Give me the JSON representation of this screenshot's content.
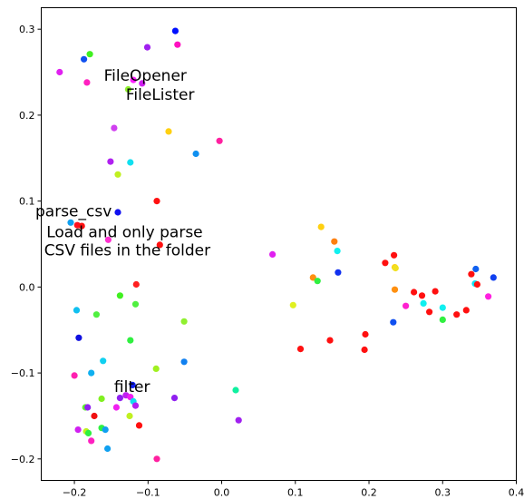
{
  "chart_data": {
    "type": "scatter",
    "title": "",
    "xlabel": "",
    "ylabel": "",
    "xlim": [
      -0.245,
      0.4
    ],
    "ylim": [
      -0.225,
      0.325
    ],
    "grid": false,
    "x_ticks": [
      -0.2,
      -0.1,
      0.0,
      0.1,
      0.2,
      0.3,
      0.4
    ],
    "x_tick_labels": [
      "−0.2",
      "−0.1",
      "0.0",
      "0.1",
      "0.2",
      "0.3",
      "0.4"
    ],
    "y_ticks": [
      -0.2,
      -0.1,
      0.0,
      0.1,
      0.2,
      0.3
    ],
    "y_tick_labels": [
      "−0.2",
      "−0.1",
      "0.0",
      "0.1",
      "0.2",
      "0.3"
    ],
    "annotations": [
      {
        "text": "FileOpener",
        "x": -0.16,
        "y": 0.24
      },
      {
        "text": "FileLister",
        "x": -0.13,
        "y": 0.218
      },
      {
        "text": "parse_csv",
        "x": -0.253,
        "y": 0.082
      },
      {
        "text": "Load and only parse",
        "x": -0.238,
        "y": 0.058
      },
      {
        "text": "CSV files in the folder",
        "x": -0.241,
        "y": 0.037
      },
      {
        "text": "filter",
        "x": -0.146,
        "y": -0.122
      }
    ],
    "points": [
      {
        "x": -0.063,
        "y": 0.298,
        "color": "#0010ff"
      },
      {
        "x": -0.101,
        "y": 0.279,
        "color": "#a020f0"
      },
      {
        "x": -0.06,
        "y": 0.282,
        "color": "#ff10c0"
      },
      {
        "x": -0.22,
        "y": 0.25,
        "color": "#e020f0"
      },
      {
        "x": -0.187,
        "y": 0.265,
        "color": "#1050f0"
      },
      {
        "x": -0.179,
        "y": 0.271,
        "color": "#40f020"
      },
      {
        "x": -0.183,
        "y": 0.238,
        "color": "#ff20c0"
      },
      {
        "x": -0.12,
        "y": 0.241,
        "color": "#ff20ff"
      },
      {
        "x": -0.108,
        "y": 0.237,
        "color": "#d020f0"
      },
      {
        "x": -0.127,
        "y": 0.23,
        "color": "#90f030"
      },
      {
        "x": -0.146,
        "y": 0.185,
        "color": "#d040f0"
      },
      {
        "x": -0.072,
        "y": 0.181,
        "color": "#ffd010"
      },
      {
        "x": -0.003,
        "y": 0.17,
        "color": "#ff20a0"
      },
      {
        "x": -0.151,
        "y": 0.146,
        "color": "#b020f0"
      },
      {
        "x": -0.124,
        "y": 0.145,
        "color": "#10e0f0"
      },
      {
        "x": -0.035,
        "y": 0.155,
        "color": "#1090f0"
      },
      {
        "x": -0.141,
        "y": 0.131,
        "color": "#c0f020"
      },
      {
        "x": -0.088,
        "y": 0.1,
        "color": "#ff1010"
      },
      {
        "x": -0.141,
        "y": 0.087,
        "color": "#1010f0"
      },
      {
        "x": -0.205,
        "y": 0.075,
        "color": "#10a0f0"
      },
      {
        "x": -0.196,
        "y": 0.072,
        "color": "#ff1020"
      },
      {
        "x": -0.19,
        "y": 0.071,
        "color": "#ff1010"
      },
      {
        "x": -0.154,
        "y": 0.055,
        "color": "#ff30d0"
      },
      {
        "x": -0.084,
        "y": 0.049,
        "color": "#ff1010"
      },
      {
        "x": -0.116,
        "y": 0.003,
        "color": "#ff2020"
      },
      {
        "x": -0.138,
        "y": -0.01,
        "color": "#40f020"
      },
      {
        "x": -0.197,
        "y": -0.027,
        "color": "#10c0f0"
      },
      {
        "x": -0.17,
        "y": -0.032,
        "color": "#50f040"
      },
      {
        "x": -0.117,
        "y": -0.02,
        "color": "#50f040"
      },
      {
        "x": -0.051,
        "y": -0.04,
        "color": "#90f030"
      },
      {
        "x": -0.194,
        "y": -0.059,
        "color": "#1010e0"
      },
      {
        "x": -0.124,
        "y": -0.062,
        "color": "#30f040"
      },
      {
        "x": -0.161,
        "y": -0.086,
        "color": "#10d0f0"
      },
      {
        "x": -0.089,
        "y": -0.095,
        "color": "#a0f020"
      },
      {
        "x": -0.177,
        "y": -0.1,
        "color": "#10b0f0"
      },
      {
        "x": -0.2,
        "y": -0.103,
        "color": "#ff20b0"
      },
      {
        "x": -0.051,
        "y": -0.087,
        "color": "#1080f0"
      },
      {
        "x": -0.121,
        "y": -0.114,
        "color": "#1020f0"
      },
      {
        "x": -0.13,
        "y": -0.126,
        "color": "#c020f0"
      },
      {
        "x": -0.124,
        "y": -0.128,
        "color": "#f020f0"
      },
      {
        "x": -0.12,
        "y": -0.133,
        "color": "#10e0f0"
      },
      {
        "x": -0.138,
        "y": -0.129,
        "color": "#9020f0"
      },
      {
        "x": -0.163,
        "y": -0.13,
        "color": "#80f020"
      },
      {
        "x": -0.064,
        "y": -0.129,
        "color": "#9020f0"
      },
      {
        "x": -0.185,
        "y": -0.14,
        "color": "#60f030"
      },
      {
        "x": -0.182,
        "y": -0.14,
        "color": "#9020f0"
      },
      {
        "x": -0.143,
        "y": -0.14,
        "color": "#f020f0"
      },
      {
        "x": -0.117,
        "y": -0.138,
        "color": "#b020f0"
      },
      {
        "x": -0.173,
        "y": -0.15,
        "color": "#f01010"
      },
      {
        "x": -0.125,
        "y": -0.15,
        "color": "#c0f020"
      },
      {
        "x": -0.112,
        "y": -0.161,
        "color": "#ff1010"
      },
      {
        "x": -0.195,
        "y": -0.166,
        "color": "#d020f0"
      },
      {
        "x": -0.184,
        "y": -0.168,
        "color": "#c0f020"
      },
      {
        "x": -0.181,
        "y": -0.17,
        "color": "#30f040"
      },
      {
        "x": -0.163,
        "y": -0.164,
        "color": "#30f040"
      },
      {
        "x": -0.158,
        "y": -0.166,
        "color": "#10a0f0"
      },
      {
        "x": -0.177,
        "y": -0.179,
        "color": "#ff20c0"
      },
      {
        "x": -0.155,
        "y": -0.188,
        "color": "#10a0f0"
      },
      {
        "x": -0.088,
        "y": -0.2,
        "color": "#ff20a0"
      },
      {
        "x": 0.019,
        "y": -0.12,
        "color": "#10f0a0"
      },
      {
        "x": 0.023,
        "y": -0.155,
        "color": "#a020f0"
      },
      {
        "x": 0.069,
        "y": 0.038,
        "color": "#e020f0"
      },
      {
        "x": 0.135,
        "y": 0.07,
        "color": "#ffd010"
      },
      {
        "x": 0.153,
        "y": 0.053,
        "color": "#ff8010"
      },
      {
        "x": 0.157,
        "y": 0.042,
        "color": "#10f0f0"
      },
      {
        "x": 0.124,
        "y": 0.011,
        "color": "#ff9010"
      },
      {
        "x": 0.13,
        "y": 0.007,
        "color": "#30f040"
      },
      {
        "x": 0.158,
        "y": 0.017,
        "color": "#1030f0"
      },
      {
        "x": 0.097,
        "y": -0.021,
        "color": "#e0f020"
      },
      {
        "x": 0.107,
        "y": -0.072,
        "color": "#ff1010"
      },
      {
        "x": 0.147,
        "y": -0.062,
        "color": "#ff1010"
      },
      {
        "x": 0.195,
        "y": -0.055,
        "color": "#ff1010"
      },
      {
        "x": 0.194,
        "y": -0.073,
        "color": "#ff1010"
      },
      {
        "x": 0.222,
        "y": 0.028,
        "color": "#ff1010"
      },
      {
        "x": 0.234,
        "y": 0.037,
        "color": "#ff1010"
      },
      {
        "x": 0.235,
        "y": 0.023,
        "color": "#ffd010"
      },
      {
        "x": 0.236,
        "y": 0.022,
        "color": "#f0e020"
      },
      {
        "x": 0.235,
        "y": -0.003,
        "color": "#ff9010"
      },
      {
        "x": 0.233,
        "y": -0.041,
        "color": "#1050f0"
      },
      {
        "x": 0.25,
        "y": -0.022,
        "color": "#ff20d0"
      },
      {
        "x": 0.261,
        "y": -0.006,
        "color": "#ff1010"
      },
      {
        "x": 0.272,
        "y": -0.01,
        "color": "#ff1010"
      },
      {
        "x": 0.274,
        "y": -0.019,
        "color": "#10f0f0"
      },
      {
        "x": 0.282,
        "y": -0.029,
        "color": "#ff1010"
      },
      {
        "x": 0.29,
        "y": -0.005,
        "color": "#ff1010"
      },
      {
        "x": 0.3,
        "y": -0.024,
        "color": "#10f0f0"
      },
      {
        "x": 0.3,
        "y": -0.038,
        "color": "#30f040"
      },
      {
        "x": 0.319,
        "y": -0.032,
        "color": "#ff1010"
      },
      {
        "x": 0.332,
        "y": -0.027,
        "color": "#ff1010"
      },
      {
        "x": 0.339,
        "y": 0.015,
        "color": "#ff1010"
      },
      {
        "x": 0.345,
        "y": 0.021,
        "color": "#1060f0"
      },
      {
        "x": 0.344,
        "y": 0.004,
        "color": "#10e0f0"
      },
      {
        "x": 0.347,
        "y": 0.003,
        "color": "#ff1010"
      },
      {
        "x": 0.362,
        "y": -0.011,
        "color": "#ff20e0"
      },
      {
        "x": 0.369,
        "y": 0.011,
        "color": "#1040f0"
      }
    ]
  }
}
